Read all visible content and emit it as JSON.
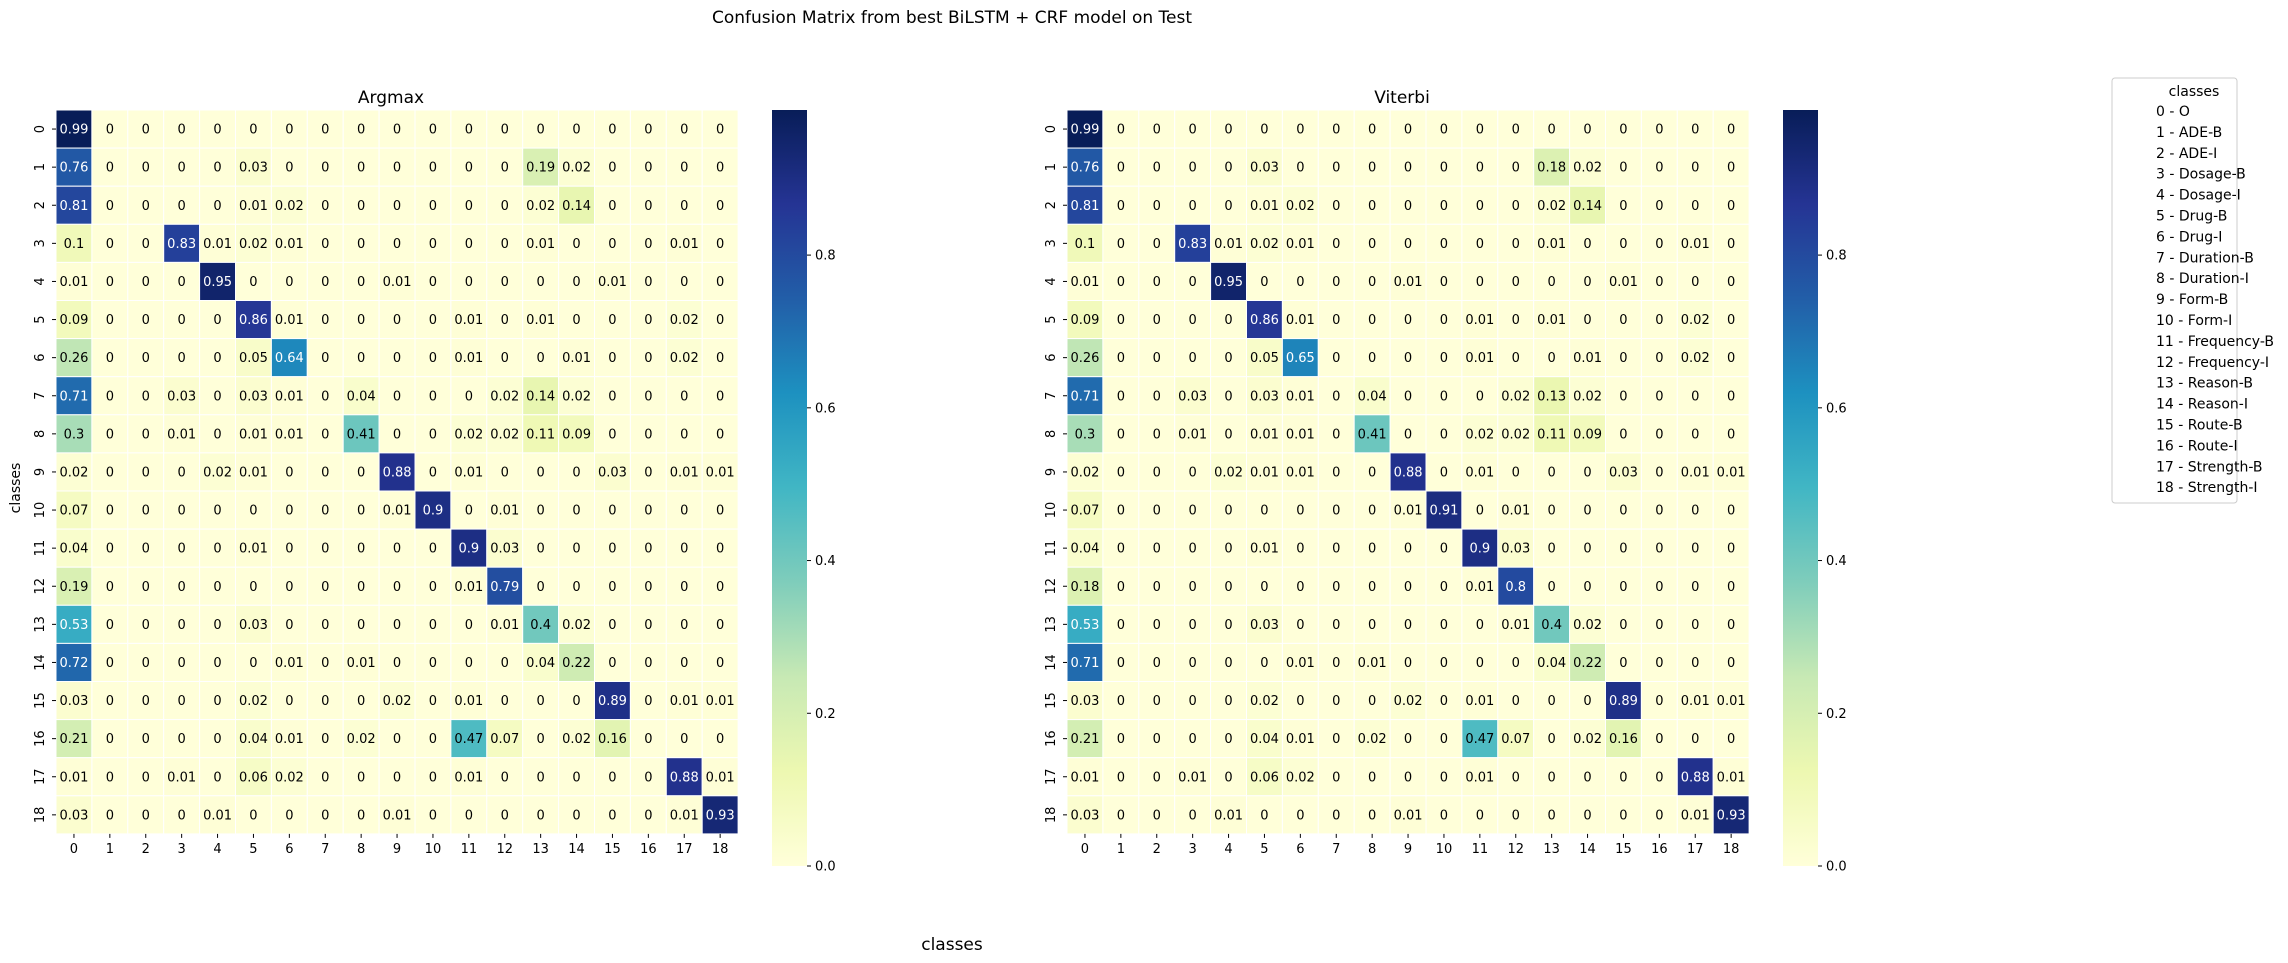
{
  "figure": {
    "suptitle": "Confusion Matrix from best BiLSTM + CRF model on Test",
    "shared_xlabel": "classes"
  },
  "colorscale": {
    "name": "YlGnBu",
    "stops": [
      "#ffffd9",
      "#edf8b1",
      "#c7e9b4",
      "#7fcdbb",
      "#41b6c4",
      "#1d91c0",
      "#225ea8",
      "#253494",
      "#081d58"
    ],
    "range": [
      0,
      0.99
    ],
    "ticks": [
      0.0,
      0.2,
      0.4,
      0.6,
      0.8
    ],
    "tick_labels": [
      "0.0",
      "0.2",
      "0.4",
      "0.6",
      "0.8"
    ]
  },
  "legend": {
    "title": "classes",
    "items": [
      "0 - O",
      "1 - ADE-B",
      "2 - ADE-I",
      "3 - Dosage-B",
      "4 - Dosage-I",
      "5 - Drug-B",
      "6 - Drug-I",
      "7 - Duration-B",
      "8 - Duration-I",
      "9 - Form-B",
      "10 - Form-I",
      "11 - Frequency-B",
      "12 - Frequency-I",
      "13 - Reason-B",
      "14 - Reason-I",
      "15 - Route-B",
      "16 - Route-I",
      "17 - Strength-B",
      "18 - Strength-I"
    ]
  },
  "chart_data": [
    {
      "type": "heatmap",
      "title": "Argmax",
      "ylabel": "classes",
      "xlabel": "",
      "x_categories": [
        "0",
        "1",
        "2",
        "3",
        "4",
        "5",
        "6",
        "7",
        "8",
        "9",
        "10",
        "11",
        "12",
        "13",
        "14",
        "15",
        "16",
        "17",
        "18"
      ],
      "y_categories": [
        "0",
        "1",
        "2",
        "3",
        "4",
        "5",
        "6",
        "7",
        "8",
        "9",
        "10",
        "11",
        "12",
        "13",
        "14",
        "15",
        "16",
        "17",
        "18"
      ],
      "values": [
        [
          0.99,
          0,
          0,
          0,
          0,
          0,
          0,
          0,
          0,
          0,
          0,
          0,
          0,
          0,
          0,
          0,
          0,
          0,
          0
        ],
        [
          0.76,
          0,
          0,
          0,
          0,
          0.03,
          0,
          0,
          0,
          0,
          0,
          0,
          0,
          0.19,
          0.02,
          0,
          0,
          0,
          0
        ],
        [
          0.81,
          0,
          0,
          0,
          0,
          0.01,
          0.02,
          0,
          0,
          0,
          0,
          0,
          0,
          0.02,
          0.14,
          0,
          0,
          0,
          0
        ],
        [
          0.1,
          0,
          0,
          0.83,
          0.01,
          0.02,
          0.01,
          0,
          0,
          0,
          0,
          0,
          0,
          0.01,
          0,
          0,
          0,
          0.01,
          0
        ],
        [
          0.01,
          0,
          0,
          0,
          0.95,
          0,
          0,
          0,
          0,
          0.01,
          0,
          0,
          0,
          0,
          0,
          0.01,
          0,
          0,
          0
        ],
        [
          0.09,
          0,
          0,
          0,
          0,
          0.86,
          0.01,
          0,
          0,
          0,
          0,
          0.01,
          0,
          0.01,
          0,
          0,
          0,
          0.02,
          0
        ],
        [
          0.26,
          0,
          0,
          0,
          0,
          0.05,
          0.64,
          0,
          0,
          0,
          0,
          0.01,
          0,
          0,
          0.01,
          0,
          0,
          0.02,
          0
        ],
        [
          0.71,
          0,
          0,
          0.03,
          0,
          0.03,
          0.01,
          0,
          0.04,
          0,
          0,
          0,
          0.02,
          0.14,
          0.02,
          0,
          0,
          0,
          0
        ],
        [
          0.3,
          0,
          0,
          0.01,
          0,
          0.01,
          0.01,
          0,
          0.41,
          0,
          0,
          0.02,
          0.02,
          0.11,
          0.09,
          0,
          0,
          0,
          0
        ],
        [
          0.02,
          0,
          0,
          0,
          0.02,
          0.01,
          0,
          0,
          0,
          0.88,
          0,
          0.01,
          0,
          0,
          0,
          0.03,
          0,
          0.01,
          0.01
        ],
        [
          0.07,
          0,
          0,
          0,
          0,
          0,
          0,
          0,
          0,
          0.01,
          0.9,
          0,
          0.01,
          0,
          0,
          0,
          0,
          0,
          0
        ],
        [
          0.04,
          0,
          0,
          0,
          0,
          0.01,
          0,
          0,
          0,
          0,
          0,
          0.9,
          0.03,
          0,
          0,
          0,
          0,
          0,
          0
        ],
        [
          0.19,
          0,
          0,
          0,
          0,
          0,
          0,
          0,
          0,
          0,
          0,
          0.01,
          0.79,
          0,
          0,
          0,
          0,
          0,
          0
        ],
        [
          0.53,
          0,
          0,
          0,
          0,
          0.03,
          0,
          0,
          0,
          0,
          0,
          0,
          0.01,
          0.4,
          0.02,
          0,
          0,
          0,
          0
        ],
        [
          0.72,
          0,
          0,
          0,
          0,
          0,
          0.01,
          0,
          0.01,
          0,
          0,
          0,
          0,
          0.04,
          0.22,
          0,
          0,
          0,
          0
        ],
        [
          0.03,
          0,
          0,
          0,
          0,
          0.02,
          0,
          0,
          0,
          0.02,
          0,
          0.01,
          0,
          0,
          0,
          0.89,
          0,
          0.01,
          0.01
        ],
        [
          0.21,
          0,
          0,
          0,
          0,
          0.04,
          0.01,
          0,
          0.02,
          0,
          0,
          0.47,
          0.07,
          0,
          0.02,
          0.16,
          0,
          0,
          0
        ],
        [
          0.01,
          0,
          0,
          0.01,
          0,
          0.06,
          0.02,
          0,
          0,
          0,
          0,
          0.01,
          0,
          0,
          0,
          0,
          0,
          0.88,
          0.01
        ],
        [
          0.03,
          0,
          0,
          0,
          0.01,
          0,
          0,
          0,
          0,
          0.01,
          0,
          0,
          0,
          0,
          0,
          0,
          0,
          0.01,
          0.93
        ]
      ]
    },
    {
      "type": "heatmap",
      "title": "Viterbi",
      "ylabel": "",
      "xlabel": "",
      "x_categories": [
        "0",
        "1",
        "2",
        "3",
        "4",
        "5",
        "6",
        "7",
        "8",
        "9",
        "10",
        "11",
        "12",
        "13",
        "14",
        "15",
        "16",
        "17",
        "18"
      ],
      "y_categories": [
        "0",
        "1",
        "2",
        "3",
        "4",
        "5",
        "6",
        "7",
        "8",
        "9",
        "10",
        "11",
        "12",
        "13",
        "14",
        "15",
        "16",
        "17",
        "18"
      ],
      "values": [
        [
          0.99,
          0,
          0,
          0,
          0,
          0,
          0,
          0,
          0,
          0,
          0,
          0,
          0,
          0,
          0,
          0,
          0,
          0,
          0
        ],
        [
          0.76,
          0,
          0,
          0,
          0,
          0.03,
          0,
          0,
          0,
          0,
          0,
          0,
          0,
          0.18,
          0.02,
          0,
          0,
          0,
          0
        ],
        [
          0.81,
          0,
          0,
          0,
          0,
          0.01,
          0.02,
          0,
          0,
          0,
          0,
          0,
          0,
          0.02,
          0.14,
          0,
          0,
          0,
          0
        ],
        [
          0.1,
          0,
          0,
          0.83,
          0.01,
          0.02,
          0.01,
          0,
          0,
          0,
          0,
          0,
          0,
          0.01,
          0,
          0,
          0,
          0.01,
          0
        ],
        [
          0.01,
          0,
          0,
          0,
          0.95,
          0,
          0,
          0,
          0,
          0.01,
          0,
          0,
          0,
          0,
          0,
          0.01,
          0,
          0,
          0
        ],
        [
          0.09,
          0,
          0,
          0,
          0,
          0.86,
          0.01,
          0,
          0,
          0,
          0,
          0.01,
          0,
          0.01,
          0,
          0,
          0,
          0.02,
          0
        ],
        [
          0.26,
          0,
          0,
          0,
          0,
          0.05,
          0.65,
          0,
          0,
          0,
          0,
          0.01,
          0,
          0,
          0.01,
          0,
          0,
          0.02,
          0
        ],
        [
          0.71,
          0,
          0,
          0.03,
          0,
          0.03,
          0.01,
          0,
          0.04,
          0,
          0,
          0,
          0.02,
          0.13,
          0.02,
          0,
          0,
          0,
          0
        ],
        [
          0.3,
          0,
          0,
          0.01,
          0,
          0.01,
          0.01,
          0,
          0.41,
          0,
          0,
          0.02,
          0.02,
          0.11,
          0.09,
          0,
          0,
          0,
          0
        ],
        [
          0.02,
          0,
          0,
          0,
          0.02,
          0.01,
          0.01,
          0,
          0,
          0.88,
          0,
          0.01,
          0,
          0,
          0,
          0.03,
          0,
          0.01,
          0.01
        ],
        [
          0.07,
          0,
          0,
          0,
          0,
          0,
          0,
          0,
          0,
          0.01,
          0.91,
          0,
          0.01,
          0,
          0,
          0,
          0,
          0,
          0
        ],
        [
          0.04,
          0,
          0,
          0,
          0,
          0.01,
          0,
          0,
          0,
          0,
          0,
          0.9,
          0.03,
          0,
          0,
          0,
          0,
          0,
          0
        ],
        [
          0.18,
          0,
          0,
          0,
          0,
          0,
          0,
          0,
          0,
          0,
          0,
          0.01,
          0.8,
          0,
          0,
          0,
          0,
          0,
          0
        ],
        [
          0.53,
          0,
          0,
          0,
          0,
          0.03,
          0,
          0,
          0,
          0,
          0,
          0,
          0.01,
          0.4,
          0.02,
          0,
          0,
          0,
          0
        ],
        [
          0.71,
          0,
          0,
          0,
          0,
          0,
          0.01,
          0,
          0.01,
          0,
          0,
          0,
          0,
          0.04,
          0.22,
          0,
          0,
          0,
          0
        ],
        [
          0.03,
          0,
          0,
          0,
          0,
          0.02,
          0,
          0,
          0,
          0.02,
          0,
          0.01,
          0,
          0,
          0,
          0.89,
          0,
          0.01,
          0.01
        ],
        [
          0.21,
          0,
          0,
          0,
          0,
          0.04,
          0.01,
          0,
          0.02,
          0,
          0,
          0.47,
          0.07,
          0,
          0.02,
          0.16,
          0,
          0,
          0
        ],
        [
          0.01,
          0,
          0,
          0.01,
          0,
          0.06,
          0.02,
          0,
          0,
          0,
          0,
          0.01,
          0,
          0,
          0,
          0,
          0,
          0.88,
          0.01
        ],
        [
          0.03,
          0,
          0,
          0,
          0.01,
          0,
          0,
          0,
          0,
          0.01,
          0,
          0,
          0,
          0,
          0,
          0,
          0,
          0.01,
          0.93
        ]
      ]
    }
  ]
}
